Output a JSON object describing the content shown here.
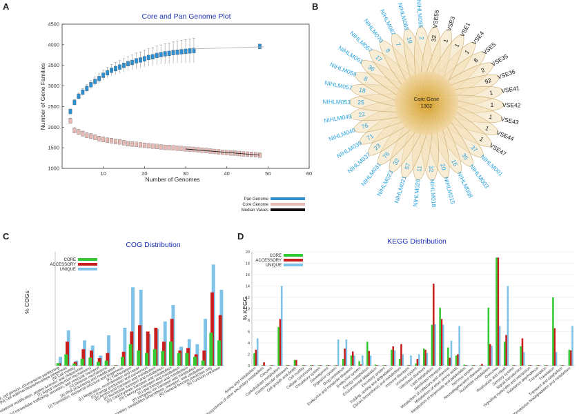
{
  "panels": {
    "a": "A",
    "b": "B",
    "c": "C",
    "d": "D"
  },
  "chart_data": [
    {
      "type": "scatter",
      "title": "Core and Pan Genome Plot",
      "xlabel": "Number of Genomes",
      "ylabel": "Number of Gene Families",
      "xlim": [
        0,
        60
      ],
      "ylim": [
        1000,
        4500
      ],
      "xticks": [
        "10",
        "20",
        "30",
        "40",
        "50",
        "60"
      ],
      "yticks": [
        "1000",
        "1500",
        "2000",
        "2500",
        "3000",
        "3500",
        "4000",
        "4500"
      ],
      "legend": [
        "Pan Genome",
        "Core Genome",
        "Median Values"
      ],
      "colors": {
        "pan": "#2e8fd0",
        "core": "#e7b9b4",
        "median": "#111111"
      },
      "series": [
        {
          "name": "Pan Genome",
          "x": [
            2,
            3,
            4,
            5,
            6,
            7,
            8,
            9,
            10,
            11,
            12,
            13,
            14,
            15,
            16,
            17,
            18,
            19,
            20,
            21,
            22,
            23,
            24,
            25,
            26,
            27,
            28,
            29,
            30,
            31,
            32,
            48
          ],
          "values": [
            2380,
            2600,
            2750,
            2850,
            2940,
            3030,
            3110,
            3180,
            3260,
            3320,
            3380,
            3420,
            3460,
            3500,
            3540,
            3570,
            3610,
            3630,
            3660,
            3690,
            3710,
            3740,
            3760,
            3780,
            3790,
            3810,
            3820,
            3830,
            3840,
            3850,
            3860,
            3960
          ]
        },
        {
          "name": "Core Genome",
          "x": [
            2,
            3,
            4,
            5,
            6,
            7,
            8,
            9,
            10,
            11,
            12,
            13,
            14,
            15,
            16,
            17,
            18,
            19,
            20,
            21,
            22,
            23,
            24,
            25,
            26,
            27,
            28,
            29,
            30,
            31,
            32,
            33,
            34,
            35,
            36,
            37,
            38,
            39,
            40,
            41,
            42,
            43,
            44,
            45,
            46,
            47,
            48
          ],
          "values": [
            2150,
            1920,
            1880,
            1840,
            1800,
            1780,
            1750,
            1720,
            1700,
            1680,
            1670,
            1650,
            1640,
            1620,
            1600,
            1590,
            1580,
            1570,
            1560,
            1550,
            1540,
            1530,
            1520,
            1510,
            1505,
            1500,
            1490,
            1480,
            1470,
            1465,
            1460,
            1450,
            1440,
            1430,
            1420,
            1410,
            1400,
            1390,
            1380,
            1375,
            1370,
            1360,
            1350,
            1345,
            1340,
            1330,
            1320
          ]
        }
      ]
    },
    {
      "type": "flower",
      "center_label": "Core Gene",
      "center_value": "1302",
      "petals": [
        {
          "name": "VSE4",
          "value": "1",
          "color": "#111111"
        },
        {
          "name": "VSE5",
          "value": "8",
          "color": "#111111"
        },
        {
          "name": "VSE35",
          "value": "2",
          "color": "#111111"
        },
        {
          "name": "VSE36",
          "value": "92",
          "color": "#111111"
        },
        {
          "name": "VSE41",
          "value": "1",
          "color": "#111111"
        },
        {
          "name": "VSE42",
          "value": "1",
          "color": "#111111"
        },
        {
          "name": "VSE43",
          "value": "1",
          "color": "#111111"
        },
        {
          "name": "VSE44",
          "value": "1",
          "color": "#111111"
        },
        {
          "name": "VSE47",
          "value": "1",
          "color": "#111111"
        },
        {
          "name": "NIHLM001",
          "value": "37",
          "color": "#29a3e0"
        },
        {
          "name": "NIHLM003",
          "value": "35",
          "color": "#29a3e0"
        },
        {
          "name": "NIHLM008",
          "value": "16",
          "color": "#29a3e0"
        },
        {
          "name": "NIHLM015",
          "value": "20",
          "color": "#29a3e0"
        },
        {
          "name": "NIHLM018",
          "value": "32",
          "color": "#29a3e0"
        },
        {
          "name": "NIHLM020",
          "value": "11",
          "color": "#29a3e0"
        },
        {
          "name": "NIHLM021",
          "value": "57",
          "color": "#29a3e0"
        },
        {
          "name": "NIHLM023",
          "value": "32",
          "color": "#29a3e0"
        },
        {
          "name": "NIHLM031",
          "value": "76",
          "color": "#29a3e0"
        },
        {
          "name": "NIHLM037",
          "value": "23",
          "color": "#29a3e0"
        },
        {
          "name": "NIHLM039",
          "value": "71",
          "color": "#29a3e0"
        },
        {
          "name": "NIHLM040",
          "value": "76",
          "color": "#29a3e0"
        },
        {
          "name": "NIHLM049",
          "value": "22",
          "color": "#29a3e0"
        },
        {
          "name": "NIHLM053",
          "value": "25",
          "color": "#29a3e0"
        },
        {
          "name": "NIHLM057",
          "value": "18",
          "color": "#29a3e0"
        },
        {
          "name": "NIHLM058",
          "value": "8",
          "color": "#29a3e0"
        },
        {
          "name": "NIHLM061",
          "value": "36",
          "color": "#29a3e0"
        },
        {
          "name": "NIHLM067",
          "value": "17",
          "color": "#29a3e0"
        },
        {
          "name": "NIHLM070",
          "value": "8",
          "color": "#29a3e0"
        },
        {
          "name": "NIHLM087",
          "value": "7",
          "color": "#29a3e0"
        },
        {
          "name": "NIHLM088",
          "value": "19",
          "color": "#29a3e0"
        },
        {
          "name": "NIHLM095",
          "value": "2",
          "color": "#29a3e0"
        },
        {
          "name": "VSE55",
          "value": "32",
          "color": "#111111"
        },
        {
          "name": "VSE3",
          "value": "1",
          "color": "#111111"
        },
        {
          "name": "VSE1",
          "value": "1",
          "color": "#111111"
        }
      ]
    },
    {
      "type": "bar",
      "title": "COG Distribution",
      "ylabel": "% COGs",
      "legend": [
        "CORE",
        "ACCESSORY",
        "UNIQUE"
      ],
      "colors": {
        "core": "#35c935",
        "accessory": "#c81e1e",
        "unique": "#7fc2e8"
      },
      "ylim": [
        0,
        45
      ],
      "categories": [
        "[D] Cell cycle control, cell division, chromosome partitioning",
        "[M] Cell wall/membrane/envelope biogenesis",
        "[N] Cell motility",
        "[O] Post-translational modification, protein turnover, and chaperones",
        "[T] Signal transduction mechanisms",
        "[U] Intracellular trafficking, secretion, and vesicular transport",
        "[V] Defense mechanisms",
        "[A] RNA processing and modification",
        "[J] Translation, ribosomal structure and biogenesis",
        "[K] Transcription",
        "[L] Replication, recombination and repair",
        "[C] Energy production and conversion",
        "[E] Amino acid transport and metabolism",
        "[F] Nucleotide transport and metabolism",
        "[G] Carbohydrate transport and metabolism",
        "[H] Coenzyme transport and metabolism",
        "[I] Lipid transport and metabolism",
        "[P] Inorganic ion transport and metabolism",
        "[Q] Secondary metabolites biosynthesis, transport, and catabolism",
        "[R] General function prediction only",
        "[S] Function unknown"
      ],
      "series": [
        {
          "name": "CORE",
          "values": [
            1.0,
            4.5,
            0.8,
            2.8,
            3.2,
            1.5,
            2.0,
            0.1,
            3.5,
            8.5,
            6.0,
            5.0,
            6.5,
            5.8,
            9.5,
            5.0,
            5.0,
            3.5,
            2.0,
            13.0,
            10.0
          ]
        },
        {
          "name": "ACCESSORY",
          "values": [
            1.0,
            9.5,
            1.5,
            6.5,
            6.0,
            3.0,
            5.0,
            0.2,
            5.5,
            13.5,
            16.0,
            13.5,
            15.0,
            9.5,
            18.5,
            6.0,
            7.0,
            4.5,
            6.0,
            29.0,
            20.0
          ]
        },
        {
          "name": "UNIQUE",
          "values": [
            3.5,
            14.0,
            2.0,
            10.0,
            8.0,
            4.0,
            12.0,
            0.2,
            15.0,
            31.0,
            30.0,
            12.5,
            14.5,
            17.5,
            24.0,
            7.5,
            10.5,
            8.5,
            18.5,
            40.0,
            30.0
          ]
        }
      ]
    },
    {
      "type": "bar",
      "title": "KEGG Distribution",
      "ylabel": "% KEGG",
      "legend": [
        "CORE",
        "ACCESSORY",
        "UNIQUE"
      ],
      "colors": {
        "core": "#35c935",
        "accessory": "#c81e1e",
        "unique": "#7fc2e8"
      },
      "ylim": [
        0,
        20
      ],
      "yticks": [
        "0",
        "2",
        "4",
        "6",
        "8",
        "10",
        "12",
        "14",
        "16",
        "18",
        "20"
      ],
      "categories": [
        "Amino acid metabolism",
        "Biosynthesis of other secondary metabolites",
        "Cancers",
        "Carbohydrate metabolism",
        "Cardiovascular diseases",
        "Cell growth and death",
        "Cell motility",
        "Cellular community",
        "Circulatory system",
        "Development",
        "Digestive system",
        "Drug resistance",
        "Endocrine and metabolic diseases",
        "Endocrine system",
        "Energy metabolism",
        "Environmental adaptation",
        "Excretory system",
        "Folding, sorting and degradation",
        "Glycan biosynthesis and metabolism",
        "Immune diseases",
        "Immune system",
        "Infectious diseases",
        "Lipid metabolism",
        "Membrane transport",
        "Metabolism of cofactors and vitamins",
        "Metabolism of other amino acids",
        "Metabolism of terpenoids and polyketides",
        "Nervous system",
        "Neurodegenerative diseases",
        "Nucleotide metabolism",
        "Overview",
        "Replication and repair",
        "Sensory system",
        "Signal transduction",
        "Signaling molecules and interaction",
        "Substance dependence",
        "Transcription",
        "Translation",
        "Transport and catabolism",
        "Xenobiotics biodegradation and metabolism"
      ],
      "series": [
        {
          "name": "CORE",
          "values": [
            2.2,
            0.1,
            0.1,
            6.8,
            0.1,
            1.0,
            0.1,
            0.1,
            0.1,
            0.1,
            0.1,
            1.2,
            1.8,
            0.8,
            4.2,
            0.2,
            0.1,
            2.8,
            1.2,
            0.1,
            0.4,
            3.0,
            7.2,
            10.2,
            3.2,
            1.8,
            0.2,
            0.1,
            0.1,
            10.2,
            19.0,
            4.2,
            0.1,
            3.4,
            0.1,
            0.1,
            0.1,
            12.0,
            0.1,
            2.8
          ]
        },
        {
          "name": "ACCESSORY",
          "values": [
            2.8,
            0.6,
            0.1,
            8.2,
            0.1,
            1.0,
            0.1,
            0.1,
            0.1,
            0.1,
            0.1,
            3.0,
            2.5,
            0.2,
            2.6,
            0.1,
            0.1,
            3.4,
            3.8,
            0.1,
            1.2,
            2.8,
            14.4,
            8.2,
            1.4,
            2.0,
            0.1,
            0.1,
            0.3,
            3.8,
            19.0,
            5.4,
            0.1,
            4.8,
            0.1,
            0.1,
            0.1,
            6.6,
            0.1,
            2.7
          ]
        },
        {
          "name": "UNIQUE",
          "values": [
            4.8,
            0.1,
            0.1,
            14.0,
            0.1,
            0.1,
            0.1,
            0.1,
            0.1,
            0.1,
            4.6,
            4.6,
            1.8,
            1.8,
            1.8,
            0.1,
            0.1,
            2.7,
            2.0,
            1.8,
            2.0,
            2.2,
            7.3,
            7.2,
            4.4,
            7.0,
            0.1,
            0.1,
            0.1,
            3.5,
            7.0,
            14.0,
            0.1,
            2.4,
            0.1,
            0.1,
            0.1,
            2.4,
            0.1,
            7.0
          ]
        }
      ]
    }
  ]
}
